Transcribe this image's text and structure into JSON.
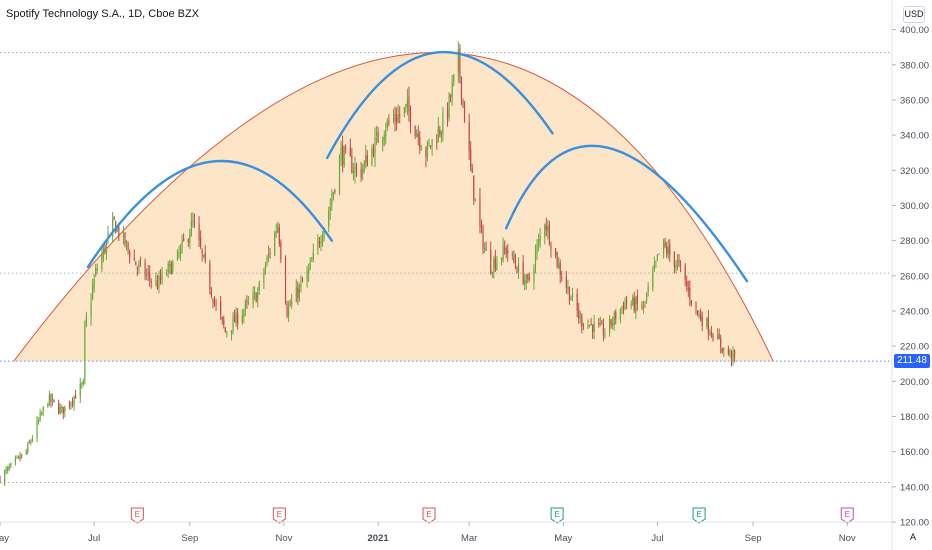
{
  "header": {
    "title": "Spotify Technology S.A., 1D, Cboe BZX",
    "currency": "USD",
    "scale_mode": "A"
  },
  "price_tag": {
    "value": "211.48",
    "color": "#2962ff"
  },
  "colors": {
    "up": "#6ba83a",
    "down": "#c24a4a",
    "dome_fill": "#fde4c4",
    "dome_stroke": "#e0563c",
    "arcs": "#3a8fde",
    "grid": "#9aa3b0",
    "axis_text": "#4a4f5c"
  },
  "chart_data": {
    "type": "candlestick",
    "title": "Spotify Technology S.A., 1D, Cboe BZX",
    "ylim": [
      120,
      410
    ],
    "yticks": [
      120,
      140,
      160,
      180,
      200,
      220,
      240,
      260,
      280,
      300,
      320,
      340,
      360,
      380,
      400
    ],
    "ytick_labels": [
      "120.00",
      "140.00",
      "160.00",
      "180.00",
      "200.00",
      "220.00",
      "240.00",
      "260.00",
      "280.00",
      "300.00",
      "320.00",
      "340.00",
      "360.00",
      "380.00",
      "400.00"
    ],
    "xlim": [
      "2020-05-01",
      "2021-11-30"
    ],
    "xticks": [
      {
        "date": "2020-05-01",
        "label": "May"
      },
      {
        "date": "2020-07-01",
        "label": "Jul"
      },
      {
        "date": "2020-09-01",
        "label": "Sep"
      },
      {
        "date": "2020-11-01",
        "label": "Nov"
      },
      {
        "date": "2021-01-01",
        "label": "2021"
      },
      {
        "date": "2021-03-01",
        "label": "Mar"
      },
      {
        "date": "2021-05-01",
        "label": "May"
      },
      {
        "date": "2021-07-01",
        "label": "Jul"
      },
      {
        "date": "2021-09-01",
        "label": "Sep"
      },
      {
        "date": "2021-11-01",
        "label": "Nov"
      }
    ],
    "horizontal_lines": [
      387,
      261.5,
      211.48,
      142.5
    ],
    "last_price": 211.48,
    "anchors": [
      [
        "2020-05-01",
        145
      ],
      [
        "2020-05-18",
        160
      ],
      [
        "2020-06-01",
        190
      ],
      [
        "2020-06-10",
        183
      ],
      [
        "2020-06-24",
        198
      ],
      [
        "2020-06-25",
        230
      ],
      [
        "2020-07-02",
        262
      ],
      [
        "2020-07-14",
        290
      ],
      [
        "2020-07-29",
        265
      ],
      [
        "2020-08-11",
        255
      ],
      [
        "2020-08-24",
        270
      ],
      [
        "2020-09-03",
        290
      ],
      [
        "2020-09-17",
        245
      ],
      [
        "2020-09-24",
        228
      ],
      [
        "2020-10-15",
        250
      ],
      [
        "2020-10-28",
        290
      ],
      [
        "2020-11-03",
        240
      ],
      [
        "2020-11-17",
        262
      ],
      [
        "2020-12-01",
        300
      ],
      [
        "2020-12-08",
        330
      ],
      [
        "2020-12-20",
        318
      ],
      [
        "2021-01-05",
        345
      ],
      [
        "2021-01-20",
        355
      ],
      [
        "2021-02-01",
        330
      ],
      [
        "2021-02-14",
        350
      ],
      [
        "2021-02-22",
        382
      ],
      [
        "2021-03-02",
        320
      ],
      [
        "2021-03-07",
        290
      ],
      [
        "2021-03-14",
        265
      ],
      [
        "2021-03-25",
        275
      ],
      [
        "2021-04-08",
        255
      ],
      [
        "2021-04-19",
        292
      ],
      [
        "2021-04-28",
        265
      ],
      [
        "2021-05-12",
        235
      ],
      [
        "2021-05-28",
        228
      ],
      [
        "2021-06-10",
        245
      ],
      [
        "2021-06-22",
        242
      ],
      [
        "2021-07-04",
        278
      ],
      [
        "2021-07-15",
        265
      ],
      [
        "2021-07-26",
        240
      ],
      [
        "2021-08-04",
        230
      ],
      [
        "2021-08-13",
        218
      ],
      [
        "2021-08-22",
        212
      ]
    ],
    "earnings_markers": [
      {
        "date": "2020-07-29",
        "label": "E",
        "color": "#d9534f"
      },
      {
        "date": "2020-10-29",
        "label": "E",
        "color": "#d9534f"
      },
      {
        "date": "2021-02-03",
        "label": "E",
        "color": "#d9534f"
      },
      {
        "date": "2021-04-27",
        "label": "E",
        "color": "#199c88"
      },
      {
        "date": "2021-07-28",
        "label": "E",
        "color": "#199c88"
      },
      {
        "date": "2021-11-01",
        "label": "E",
        "color": "#c246c9"
      }
    ],
    "dome": {
      "start": [
        "2020-05-10",
        211.5
      ],
      "peak": [
        "2021-02-08",
        387
      ],
      "end": [
        "2021-09-14",
        211.5
      ]
    },
    "arcs": [
      {
        "start": [
          "2020-06-27",
          265
        ],
        "peak": [
          "2020-09-16",
          325
        ],
        "end": [
          "2020-12-02",
          280
        ]
      },
      {
        "start": [
          "2020-11-29",
          327
        ],
        "peak": [
          "2021-02-08",
          387
        ],
        "end": [
          "2021-04-24",
          341
        ]
      },
      {
        "start": [
          "2021-03-25",
          287
        ],
        "peak": [
          "2021-05-29",
          333
        ],
        "end": [
          "2021-08-28",
          257
        ]
      }
    ]
  }
}
